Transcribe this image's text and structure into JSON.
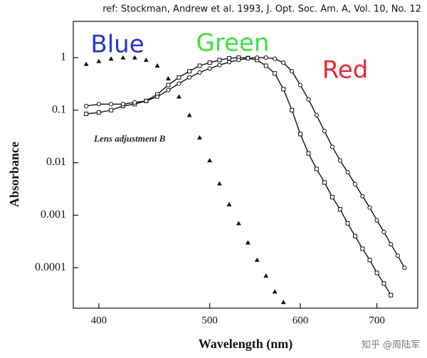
{
  "chart_data": {
    "type": "scatter",
    "reference": "ref: Stockman, Andrew et al. 1993, J. Opt. Soc. Am. A, Vol. 10, No. 12",
    "annotation": "Lens adjustment B",
    "watermark": "知乎 @周陆军",
    "xlabel": "Wavelength (nm)",
    "ylabel": "Absorbance",
    "xscale": "log",
    "yscale": "log",
    "xlim": [
      380,
      760
    ],
    "ylim": [
      1.7e-05,
      4.9
    ],
    "xticks": [
      400,
      500,
      600,
      700
    ],
    "yticks": [
      1,
      0.1,
      0.01,
      0.001,
      0.0001
    ],
    "series": [
      {
        "name": "Blue",
        "color": "#2a35d0",
        "marker": "triangle",
        "marker_color": "#111111",
        "line": false,
        "x": [
          390,
          400,
          410,
          420,
          430,
          440,
          450,
          460,
          470,
          480,
          490,
          500,
          510,
          520,
          530,
          540,
          550,
          560,
          570,
          580
        ],
        "values": [
          0.75,
          0.85,
          0.95,
          1.0,
          1.0,
          0.9,
          0.7,
          0.4,
          0.18,
          0.08,
          0.03,
          0.011,
          0.004,
          0.0016,
          0.0007,
          0.0003,
          0.00014,
          7e-05,
          3.5e-05,
          2.2e-05
        ]
      },
      {
        "name": "Green",
        "color": "#3ee03e",
        "marker": "square",
        "marker_color": "#111111",
        "line": true,
        "x": [
          390,
          400,
          410,
          420,
          430,
          440,
          450,
          460,
          470,
          480,
          490,
          500,
          510,
          520,
          530,
          540,
          550,
          560,
          570,
          580,
          590,
          600,
          610,
          620,
          630,
          640,
          650,
          660,
          670,
          680,
          690,
          700,
          710,
          720
        ],
        "values": [
          0.085,
          0.09,
          0.1,
          0.12,
          0.13,
          0.15,
          0.2,
          0.3,
          0.42,
          0.55,
          0.7,
          0.8,
          0.9,
          0.97,
          1.0,
          0.98,
          0.9,
          0.7,
          0.5,
          0.25,
          0.1,
          0.035,
          0.015,
          0.0076,
          0.0042,
          0.0022,
          0.0013,
          0.0007,
          0.0004,
          0.00023,
          0.00014,
          8e-05,
          5e-05,
          3e-05
        ]
      },
      {
        "name": "Red",
        "color": "#e8283a",
        "marker": "circle",
        "marker_color": "#111111",
        "line": true,
        "x": [
          390,
          400,
          410,
          420,
          430,
          440,
          450,
          460,
          470,
          480,
          490,
          500,
          510,
          520,
          530,
          540,
          550,
          560,
          570,
          580,
          590,
          600,
          610,
          620,
          630,
          640,
          650,
          660,
          670,
          680,
          690,
          700,
          710,
          720,
          730,
          740
        ],
        "values": [
          0.12,
          0.13,
          0.13,
          0.13,
          0.14,
          0.15,
          0.18,
          0.24,
          0.32,
          0.42,
          0.52,
          0.62,
          0.72,
          0.82,
          0.9,
          0.97,
          1.0,
          1.0,
          0.95,
          0.8,
          0.55,
          0.3,
          0.16,
          0.08,
          0.04,
          0.02,
          0.011,
          0.0066,
          0.0039,
          0.0023,
          0.0014,
          0.0008,
          0.00048,
          0.00028,
          0.00017,
          0.0001
        ]
      }
    ]
  }
}
